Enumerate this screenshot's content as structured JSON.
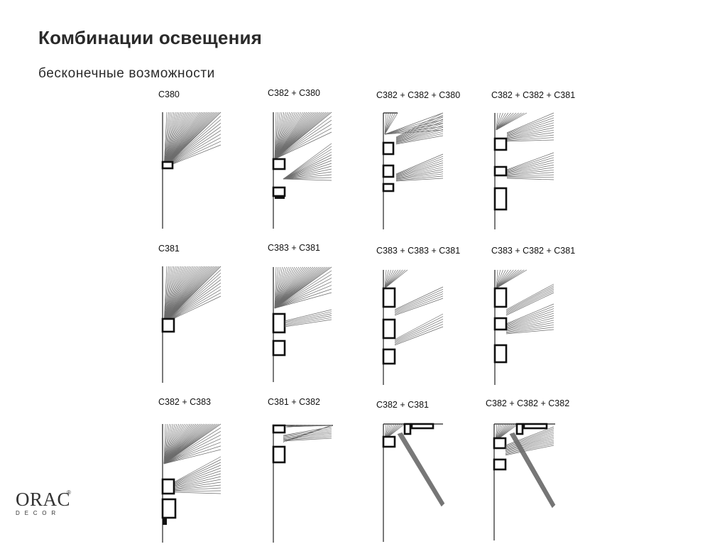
{
  "header": {
    "title": "Комбинации освещения",
    "subtitle": "бесконечные возможности"
  },
  "cells": [
    {
      "label": "C380",
      "shape": "c380"
    },
    {
      "label": "C382 + C380",
      "shape": "c382_c380"
    },
    {
      "label": "C382 + C382 + C380",
      "shape": "c382_c382_c380"
    },
    {
      "label": "C382 + C382 + C381",
      "shape": "c382_c382_c381"
    },
    {
      "label": "C381",
      "shape": "c381"
    },
    {
      "label": "C383 + C381",
      "shape": "c383_c381"
    },
    {
      "label": "C383 + C383 + C381",
      "shape": "c383_c383_c381"
    },
    {
      "label": "C383 + C382 + C381",
      "shape": "c383_c382_c381"
    },
    {
      "label": "C382 + C383",
      "shape": "c382_c383"
    },
    {
      "label": "C381 + C382",
      "shape": "c381_c382"
    },
    {
      "label": "C382 + C381",
      "shape": "c382_c381_ceiling"
    },
    {
      "label": "C382 + C382 + C382",
      "shape": "c382_x3_ceiling"
    }
  ],
  "logo": {
    "word": "ORAC",
    "sub": "DECOR",
    "reg": "®"
  }
}
